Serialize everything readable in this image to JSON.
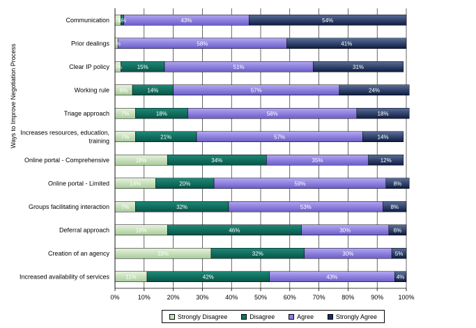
{
  "chart_data": {
    "type": "bar",
    "orientation": "horizontal",
    "stacked": "percent",
    "title": "",
    "ylabel": "Ways to Improve Negotiation Process",
    "xlabel": "",
    "xlim": [
      0,
      100
    ],
    "x_ticks": [
      "0%",
      "10%",
      "20%",
      "30%",
      "40%",
      "50%",
      "60%",
      "70%",
      "80%",
      "90%",
      "100%"
    ],
    "categories": [
      "Communication",
      "Prior dealings",
      "Clear IP policy",
      "Working rule",
      "Triage approach",
      "Increases resources, education, training",
      "Online portal - Comprehensive",
      "Online portal - Limited",
      "Groups facilitating interaction",
      "Deferral approach",
      "Creation of an agency",
      "Increased availability of services"
    ],
    "category_lines": [
      [
        "Communication"
      ],
      [
        "Prior dealings"
      ],
      [
        "Clear IP policy"
      ],
      [
        "Working rule"
      ],
      [
        "Triage approach"
      ],
      [
        "Increases resources, education,",
        "training"
      ],
      [
        "Online portal - Comprehensive"
      ],
      [
        "Online portal - Limited"
      ],
      [
        "Groups facilitating interaction"
      ],
      [
        "Deferral approach"
      ],
      [
        "Creation of an agency"
      ],
      [
        "Increased availability of services"
      ]
    ],
    "series": [
      {
        "name": "Strongly Disagree",
        "color": "#c6dfb9",
        "values": [
          2,
          1,
          2,
          6,
          7,
          7,
          18,
          14,
          7,
          18,
          33,
          11
        ]
      },
      {
        "name": "Disagree",
        "color": "#0f7566",
        "values": [
          1,
          0,
          15,
          14,
          18,
          21,
          34,
          20,
          32,
          46,
          32,
          42
        ]
      },
      {
        "name": "Agree",
        "color": "#8c7fe0",
        "values": [
          43,
          58,
          51,
          57,
          58,
          57,
          35,
          59,
          53,
          30,
          30,
          43
        ]
      },
      {
        "name": "Strongly Agree",
        "color": "#1b2f5e",
        "values": [
          54,
          41,
          31,
          24,
          18,
          14,
          12,
          8,
          8,
          6,
          5,
          4
        ]
      }
    ],
    "data_labels": [
      [
        "2%",
        "1%",
        "43%",
        "54%"
      ],
      [
        "1%",
        "",
        "58%",
        "41%"
      ],
      [
        "2%",
        "15%",
        "51%",
        "31%"
      ],
      [
        "6%",
        "14%",
        "57%",
        "24%"
      ],
      [
        "7%",
        "18%",
        "58%",
        "18%"
      ],
      [
        "7%",
        "21%",
        "57%",
        "14%"
      ],
      [
        "18%",
        "34%",
        "35%",
        "12%"
      ],
      [
        "14%",
        "20%",
        "59%",
        "8%"
      ],
      [
        "7%",
        "32%",
        "53%",
        "8%"
      ],
      [
        "18%",
        "46%",
        "30%",
        "6%"
      ],
      [
        "33%",
        "32%",
        "30%",
        "5%"
      ],
      [
        "11%",
        "42%",
        "43%",
        "4%"
      ]
    ],
    "legend_position": "bottom",
    "grid": "vertical"
  }
}
